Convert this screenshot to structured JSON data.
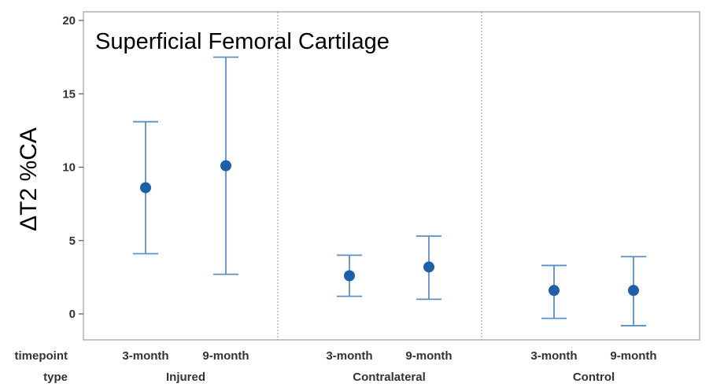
{
  "chart_data": {
    "type": "interval",
    "title": "Superficial Femoral Cartilage",
    "ylabel": "ΔT2 %CA",
    "ylim": [
      -1,
      20
    ],
    "yticks": [
      0,
      5,
      10,
      15,
      20
    ],
    "row_labels": [
      "timepoint",
      "type"
    ],
    "groups": [
      {
        "type": "Injured",
        "points": [
          {
            "timepoint": "3-month",
            "mean": 8.6,
            "lower": 4.1,
            "upper": 13.1
          },
          {
            "timepoint": "9-month",
            "mean": 10.1,
            "lower": 2.7,
            "upper": 17.5
          }
        ]
      },
      {
        "type": "Contralateral",
        "points": [
          {
            "timepoint": "3-month",
            "mean": 2.6,
            "lower": 1.2,
            "upper": 4.0
          },
          {
            "timepoint": "9-month",
            "mean": 3.2,
            "lower": 1.0,
            "upper": 5.3
          }
        ]
      },
      {
        "type": "Control",
        "points": [
          {
            "timepoint": "3-month",
            "mean": 1.6,
            "lower": -0.3,
            "upper": 3.3
          },
          {
            "timepoint": "9-month",
            "mean": 1.6,
            "lower": -0.8,
            "upper": 3.9
          }
        ]
      }
    ],
    "colors": {
      "marker": "#1f5fa8",
      "whisker": "#5b8fc7",
      "frame": "#b0b0b0",
      "divider": "#9a9a9a"
    }
  }
}
